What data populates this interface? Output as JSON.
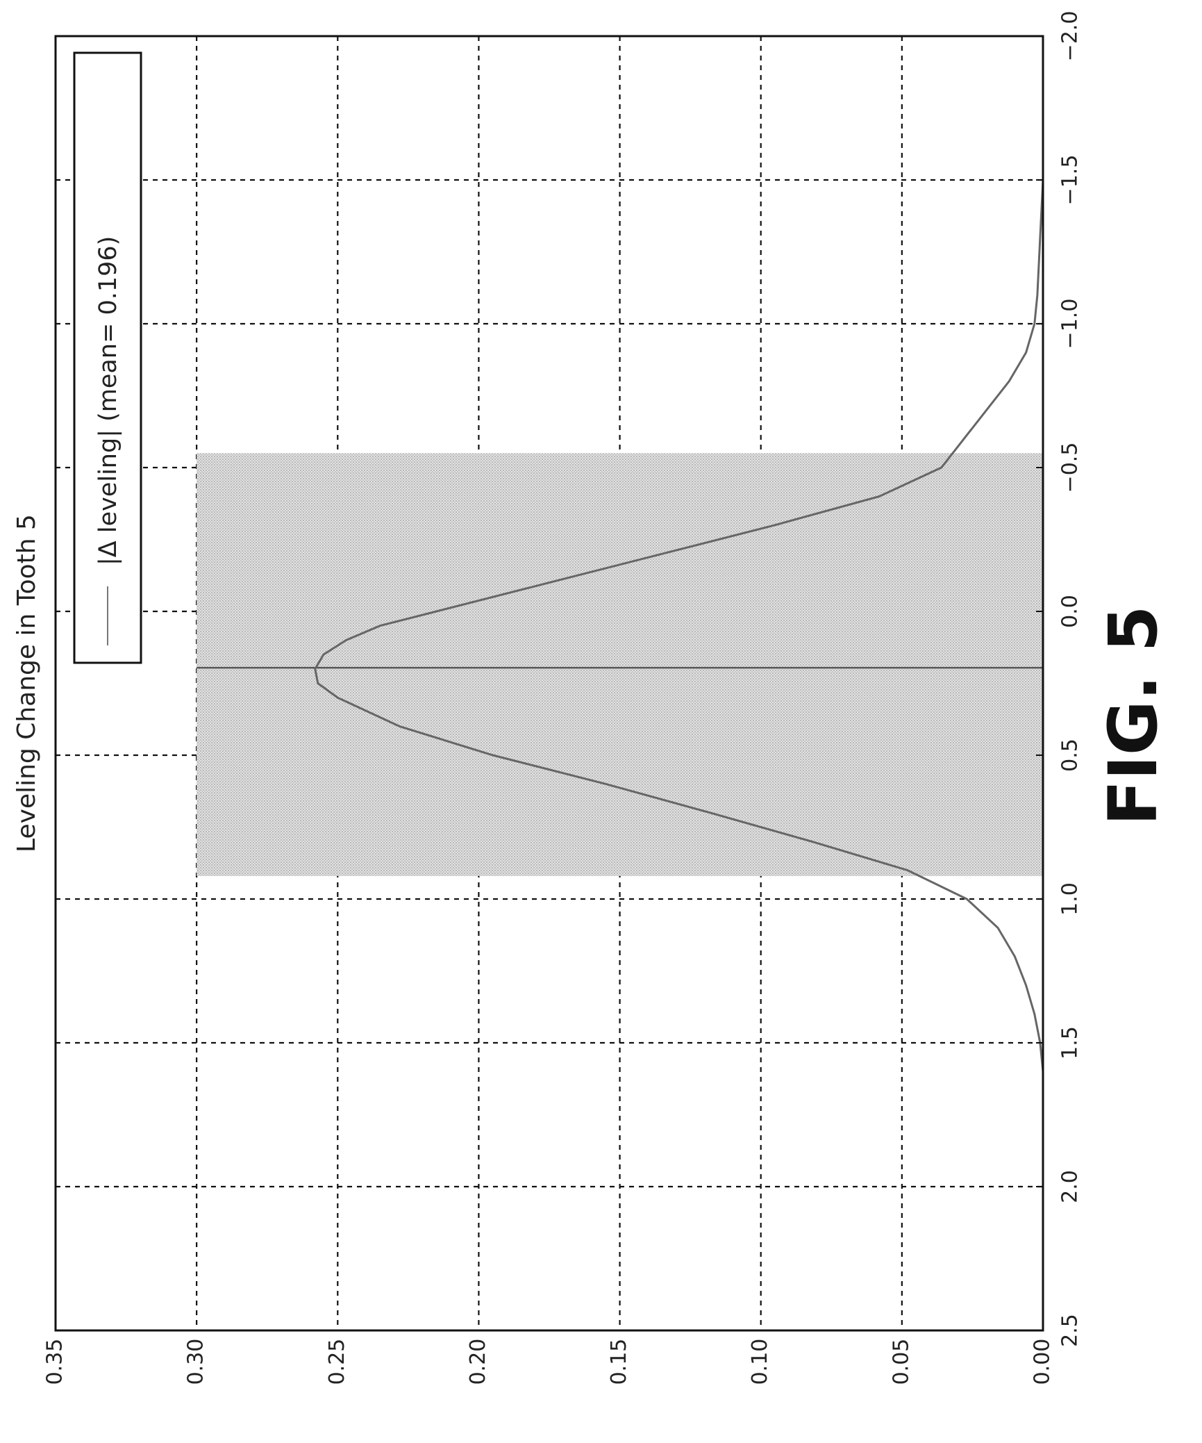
{
  "figure_label": "FIG. 5",
  "chart_data": {
    "type": "line",
    "title": "Leveling Change in Tooth 5",
    "xlabel": "",
    "ylabel": "",
    "xlim": [
      -2.0,
      2.5
    ],
    "ylim": [
      0.0,
      0.35
    ],
    "x_ticks": [
      -2.0,
      -1.5,
      -1.0,
      -0.5,
      0.0,
      0.5,
      1.0,
      1.5,
      2.0,
      2.5
    ],
    "x_tick_labels": [
      "−2.0",
      "−1.5",
      "−1.0",
      "−0.5",
      "0.0",
      "0.5",
      "1.0",
      "1.5",
      "2.0",
      "2.5"
    ],
    "y_ticks": [
      0.0,
      0.05,
      0.1,
      0.15,
      0.2,
      0.25,
      0.3,
      0.35
    ],
    "y_tick_labels": [
      "0.00",
      "0.05",
      "0.10",
      "0.15",
      "0.20",
      "0.25",
      "0.30",
      "0.35"
    ],
    "grid": true,
    "legend": {
      "placement": "top-right",
      "entries": [
        "|Δ leveling| (mean= 0.196)"
      ]
    },
    "mean_line": {
      "x": 0.196,
      "y_top": 0.3
    },
    "shaded_region": {
      "x_start": -0.55,
      "x_end": 0.92,
      "y_top": 0.3
    },
    "series": [
      {
        "name": "|Δ leveling| (mean= 0.196)",
        "x": [
          -2.0,
          -1.5,
          -1.3,
          -1.1,
          -1.0,
          -0.9,
          -0.8,
          -0.7,
          -0.6,
          -0.5,
          -0.4,
          -0.3,
          -0.2,
          -0.1,
          0.0,
          0.05,
          0.1,
          0.15,
          0.2,
          0.25,
          0.3,
          0.4,
          0.5,
          0.6,
          0.7,
          0.8,
          0.9,
          1.0,
          1.1,
          1.2,
          1.3,
          1.4,
          1.5,
          1.6,
          1.8,
          2.0
        ],
        "values": [
          0.0,
          0.0,
          0.001,
          0.002,
          0.003,
          0.006,
          0.012,
          0.02,
          0.028,
          0.036,
          0.058,
          0.095,
          0.135,
          0.175,
          0.215,
          0.235,
          0.247,
          0.255,
          0.258,
          0.257,
          0.25,
          0.228,
          0.195,
          0.155,
          0.118,
          0.082,
          0.048,
          0.027,
          0.016,
          0.01,
          0.006,
          0.003,
          0.001,
          0.0,
          0.0,
          0.0
        ]
      }
    ]
  }
}
